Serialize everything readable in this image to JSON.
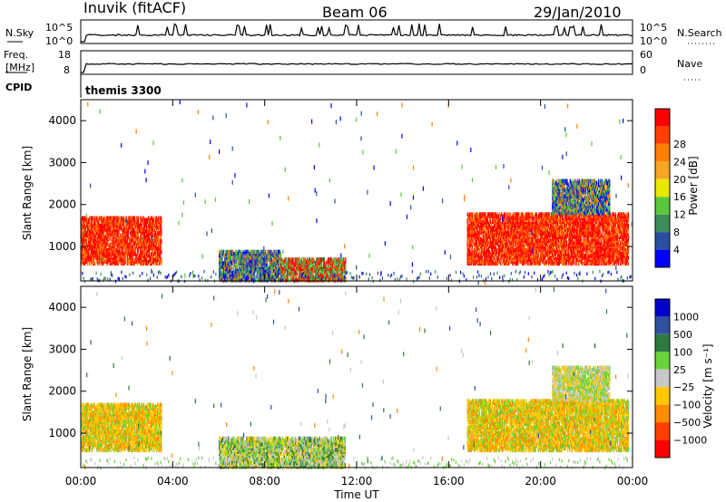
{
  "header": {
    "station": "Inuvik (fitACF)",
    "beam": "Beam 06",
    "date": "29/Jan/2010"
  },
  "strip_labels": {
    "left_sky": "N.Sky",
    "left_freq_top": "Freq.",
    "left_freq_bottom": "[MHz]",
    "left_cpid": "CPID",
    "right_search": "N.Search",
    "right_nave": "Nave",
    "cpid_text": "themis 3300",
    "nsky_ticks": [
      "10^5",
      "10^0"
    ],
    "nsearch_ticks": [
      "10^5",
      "10^0"
    ],
    "freq_ticks": [
      "18",
      "8"
    ],
    "nave_ticks": [
      "60",
      "0"
    ]
  },
  "colors": {
    "power_scale": [
      "#0000ff",
      "#2a4fa0",
      "#3d8c5a",
      "#5ac83c",
      "#e8e800",
      "#f5a623",
      "#ff7f00",
      "#ff4000",
      "#ff0000"
    ],
    "velocity_scale": [
      "#0000c8",
      "#3050a0",
      "#2e7a3e",
      "#6ad23a",
      "#c8c8c8",
      "#ffc800",
      "#ff8c00",
      "#ff4000",
      "#ff0000"
    ]
  },
  "chart_data": [
    {
      "type": "heatmap",
      "title": "",
      "xlabel": "",
      "ylabel": "Slant Range [km]",
      "xlim": [
        "00:00",
        "24:00"
      ],
      "ylim": [
        180,
        4500
      ],
      "x_tick_labels": [
        "00:00",
        "04:00",
        "08:00",
        "12:00",
        "16:00",
        "20:00",
        "00:00"
      ],
      "y_tick_labels": [
        "1000",
        "2000",
        "3000",
        "4000"
      ],
      "colorbar": {
        "label": "Power [dB]",
        "tick_labels": [
          "4",
          "8",
          "12",
          "16",
          "20",
          "24",
          "28"
        ]
      },
      "echo_regions": [
        {
          "t_start_h": 0.0,
          "t_end_h": 3.5,
          "range_min_km": 600,
          "range_max_km": 1700,
          "level": "very high"
        },
        {
          "t_start_h": 6.0,
          "t_end_h": 8.7,
          "range_min_km": 200,
          "range_max_km": 900,
          "level": "mixed"
        },
        {
          "t_start_h": 8.7,
          "t_end_h": 11.5,
          "range_min_km": 200,
          "range_max_km": 700,
          "level": "mixed high"
        },
        {
          "t_start_h": 16.8,
          "t_end_h": 23.8,
          "range_min_km": 600,
          "range_max_km": 1800,
          "level": "very high"
        },
        {
          "t_start_h": 20.5,
          "t_end_h": 23.0,
          "range_min_km": 1800,
          "range_max_km": 2600,
          "level": "mixed"
        }
      ]
    },
    {
      "type": "heatmap",
      "title": "",
      "xlabel": "Time UT",
      "ylabel": "Slant Range [km]",
      "xlim": [
        "00:00",
        "24:00"
      ],
      "ylim": [
        180,
        4500
      ],
      "x_tick_labels": [
        "00:00",
        "04:00",
        "08:00",
        "12:00",
        "16:00",
        "20:00",
        "00:00"
      ],
      "y_tick_labels": [
        "1000",
        "2000",
        "3000",
        "4000"
      ],
      "colorbar": {
        "label": "Velocity [m s⁻¹]",
        "tick_labels": [
          "1000",
          "500",
          "100",
          "25",
          "−25",
          "−100",
          "−500",
          "−1000"
        ]
      },
      "echo_regions": [
        {
          "t_start_h": 0.0,
          "t_end_h": 3.5,
          "range_min_km": 600,
          "range_max_km": 1700,
          "level": "-100 to -500"
        },
        {
          "t_start_h": 6.0,
          "t_end_h": 11.5,
          "range_min_km": 200,
          "range_max_km": 900,
          "level": "mixed near 0"
        },
        {
          "t_start_h": 16.8,
          "t_end_h": 23.8,
          "range_min_km": 600,
          "range_max_km": 1800,
          "level": "-100 to -500"
        },
        {
          "t_start_h": 20.5,
          "t_end_h": 23.0,
          "range_min_km": 1800,
          "range_max_km": 2600,
          "level": "near 0"
        }
      ]
    }
  ]
}
